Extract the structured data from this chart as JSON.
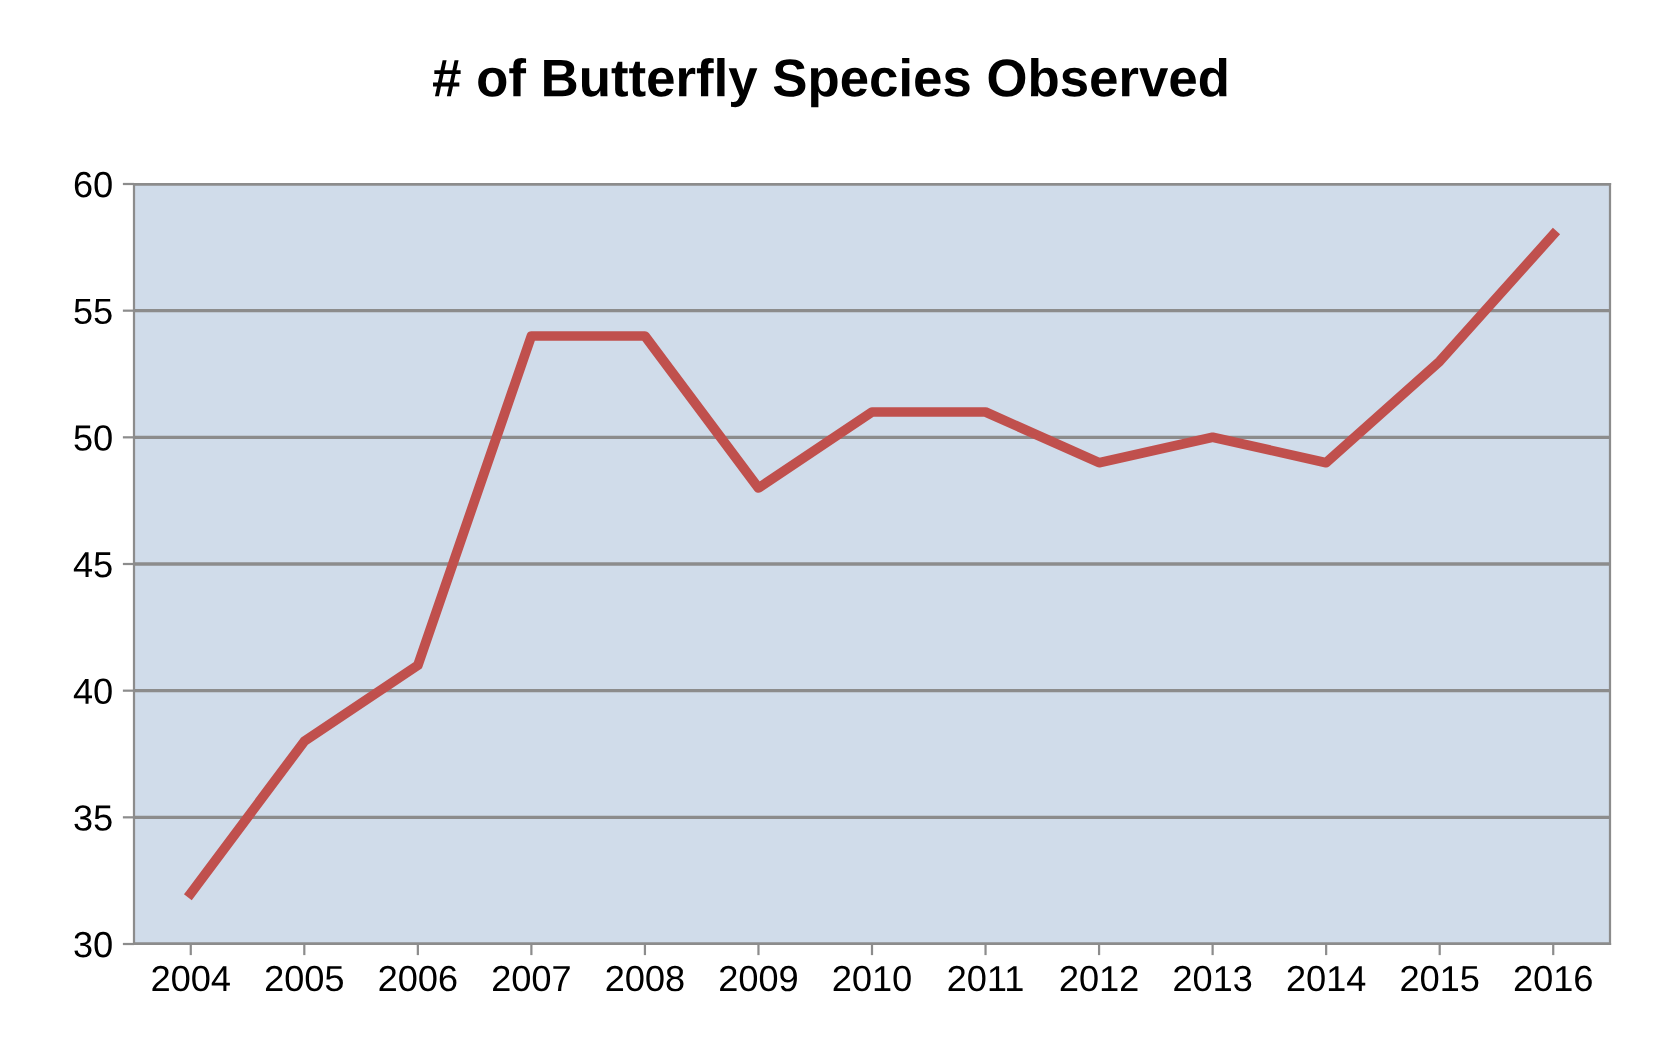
{
  "chart_data": {
    "type": "line",
    "title": "# of Butterfly Species Observed",
    "categories": [
      "2004",
      "2005",
      "2006",
      "2007",
      "2008",
      "2009",
      "2010",
      "2011",
      "2012",
      "2013",
      "2014",
      "2015",
      "2016"
    ],
    "series": [
      {
        "color": "#c0504d",
        "values": [
          32,
          38,
          41,
          54,
          54,
          48,
          51,
          51,
          49,
          50,
          49,
          53,
          58
        ]
      }
    ],
    "ylim": [
      30,
      60
    ],
    "yticks": [
      30,
      35,
      40,
      45,
      50,
      55,
      60
    ],
    "grid": "y",
    "legend": false,
    "marker": "none",
    "line_style": "solid"
  }
}
